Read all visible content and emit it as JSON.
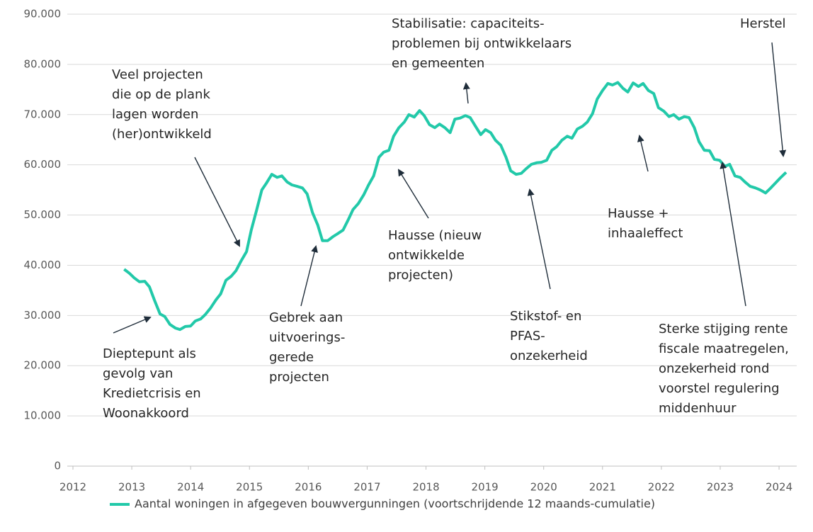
{
  "chart_data": {
    "type": "line",
    "x": [
      2012.87,
      2012.96,
      2013.04,
      2013.13,
      2013.22,
      2013.3,
      2013.39,
      2013.48,
      2013.56,
      2013.65,
      2013.74,
      2013.82,
      2013.91,
      2014.0,
      2014.08,
      2014.17,
      2014.25,
      2014.34,
      2014.43,
      2014.51,
      2014.6,
      2014.69,
      2014.77,
      2014.86,
      2014.95,
      2015.03,
      2015.12,
      2015.21,
      2015.29,
      2015.38,
      2015.47,
      2015.55,
      2015.64,
      2015.72,
      2015.81,
      2015.9,
      2015.98,
      2016.07,
      2016.16,
      2016.24,
      2016.33,
      2016.42,
      2016.5,
      2016.59,
      2016.68,
      2016.76,
      2016.85,
      2016.94,
      2017.02,
      2017.11,
      2017.2,
      2017.28,
      2017.37,
      2017.45,
      2017.54,
      2017.63,
      2017.71,
      2017.8,
      2017.89,
      2017.97,
      2018.06,
      2018.15,
      2018.23,
      2018.32,
      2018.41,
      2018.49,
      2018.58,
      2018.67,
      2018.75,
      2018.84,
      2018.93,
      2019.01,
      2019.1,
      2019.18,
      2019.27,
      2019.36,
      2019.44,
      2019.53,
      2019.62,
      2019.7,
      2019.79,
      2019.88,
      2019.96,
      2020.05,
      2020.14,
      2020.22,
      2020.31,
      2020.4,
      2020.48,
      2020.57,
      2020.66,
      2020.74,
      2020.83,
      2020.91,
      2021.0,
      2021.09,
      2021.17,
      2021.26,
      2021.35,
      2021.43,
      2021.52,
      2021.61,
      2021.69,
      2021.78,
      2021.87,
      2021.95,
      2022.04,
      2022.13,
      2022.21,
      2022.3,
      2022.39,
      2022.47,
      2022.56,
      2022.64,
      2022.73,
      2022.82,
      2022.9,
      2022.99,
      2023.08,
      2023.16,
      2023.25,
      2023.34,
      2023.42,
      2023.51,
      2023.6,
      2023.68,
      2023.77,
      2023.86,
      2023.94,
      2024.03,
      2024.12
    ],
    "series": [
      {
        "name": "Aantal woningen in afgegeven bouwvergunningen (voortschrijdende 12 maands-cumulatie)",
        "color": "#22c9a9",
        "values": [
          39200,
          38400,
          37500,
          36700,
          36800,
          35700,
          32900,
          30300,
          29800,
          28200,
          27500,
          27200,
          27800,
          27900,
          28900,
          29300,
          30200,
          31500,
          33100,
          34300,
          37000,
          37800,
          38900,
          40900,
          42700,
          47000,
          50900,
          55000,
          56400,
          58100,
          57500,
          57800,
          56600,
          56000,
          55700,
          55400,
          54200,
          50500,
          48000,
          44900,
          44900,
          45700,
          46300,
          47000,
          49100,
          51100,
          52300,
          54000,
          55900,
          57800,
          61500,
          62500,
          62900,
          65700,
          67400,
          68500,
          70000,
          69500,
          70800,
          69800,
          68000,
          67400,
          68100,
          67400,
          66400,
          69100,
          69300,
          69800,
          69400,
          67700,
          66000,
          67000,
          66400,
          64900,
          63900,
          61500,
          58800,
          58100,
          58300,
          59200,
          60100,
          60400,
          60500,
          60900,
          62900,
          63600,
          64900,
          65700,
          65300,
          67100,
          67700,
          68500,
          70200,
          73100,
          74800,
          76200,
          75900,
          76400,
          75200,
          74500,
          76300,
          75600,
          76200,
          74800,
          74200,
          71400,
          70700,
          69600,
          70000,
          69100,
          69600,
          69400,
          67400,
          64600,
          62900,
          62800,
          61100,
          60900,
          59700,
          60100,
          57800,
          57500,
          56600,
          55700,
          55400,
          55000,
          54400,
          55400,
          56400,
          57500,
          58500
        ]
      }
    ],
    "xlim": [
      2012,
      2024.3
    ],
    "xticks": [
      2012,
      2013,
      2014,
      2015,
      2016,
      2017,
      2018,
      2019,
      2020,
      2021,
      2022,
      2023,
      2024
    ],
    "ylim": [
      0,
      90000
    ],
    "yticks": [
      0,
      {
        "value": 10000,
        "label": "10.000"
      },
      {
        "value": 20000,
        "label": "20.000"
      },
      {
        "value": 30000,
        "label": "30.000"
      },
      {
        "value": 40000,
        "label": "40.000"
      },
      {
        "value": 50000,
        "label": "50.000"
      },
      {
        "value": 60000,
        "label": "60.000"
      },
      {
        "value": 70000,
        "label": "70.000"
      },
      {
        "value": 80000,
        "label": "80.000"
      },
      {
        "value": 90000,
        "label": "90.000"
      }
    ],
    "grid": true,
    "annotations": [
      [
        "Dieptepunt als",
        "gevolg van",
        "Kredietcrisis en",
        "Woonakkoord"
      ],
      [
        "Veel projecten",
        "die op de plank",
        "lagen worden",
        "(her)ontwikkeld"
      ],
      [
        "Gebrek aan",
        "uitvoerings-",
        "gerede",
        "projecten"
      ],
      [
        "Hausse (nieuw",
        "ontwikkelde",
        "projecten)"
      ],
      [
        "Stabilisatie: capaciteits-",
        "problemen bij ontwikkelaars",
        "en gemeenten"
      ],
      [
        "Stikstof- en",
        "PFAS-",
        "onzekerheid"
      ],
      [
        "Hausse +",
        "inhaaleffect"
      ],
      [
        "Herstel"
      ],
      [
        "Sterke stijging rente",
        "fiscale maatregelen,",
        "onzekerheid rond",
        "voorstel regulering",
        "middenhuur"
      ]
    ]
  }
}
